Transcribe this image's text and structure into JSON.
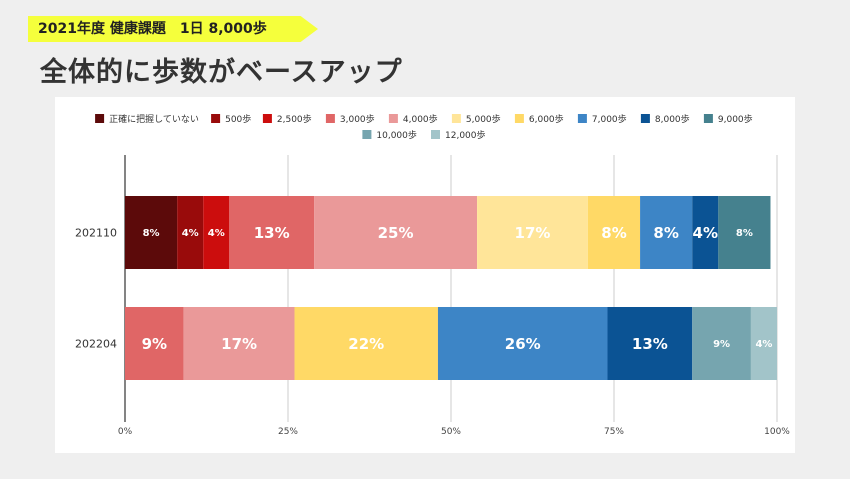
{
  "header": {
    "tag": "2021年度 健康課題　1日 8,000歩",
    "title": "全体的に歩数がベースアップ"
  },
  "chart_data": {
    "type": "bar",
    "orientation": "horizontal",
    "stacked": true,
    "normalized": true,
    "legend_position": "top",
    "grid": true,
    "categories": [
      "202110",
      "202204"
    ],
    "x_ticks": [
      "0%",
      "25%",
      "50%",
      "75%",
      "100%"
    ],
    "xlim": [
      0,
      100
    ],
    "series": [
      {
        "name": "正確に把握していない",
        "color": "#5c0a0a",
        "values": [
          8,
          0
        ],
        "labels": [
          "8%",
          ""
        ],
        "label_size": "small"
      },
      {
        "name": "500歩",
        "color": "#990b0b",
        "values": [
          4,
          0
        ],
        "labels": [
          "4%",
          ""
        ],
        "label_size": "small"
      },
      {
        "name": "2,500歩",
        "color": "#cc0d0d",
        "values": [
          4,
          0
        ],
        "labels": [
          "4%",
          ""
        ],
        "label_size": "small"
      },
      {
        "name": "3,000歩",
        "color": "#e06666",
        "values": [
          13,
          9
        ],
        "labels": [
          "13%",
          "9%"
        ],
        "label_size": "large"
      },
      {
        "name": "4,000歩",
        "color": "#ea9999",
        "values": [
          25,
          17
        ],
        "labels": [
          "25%",
          "17%"
        ],
        "label_size": "large"
      },
      {
        "name": "5,000歩",
        "color": "#ffe599",
        "values": [
          17,
          0
        ],
        "labels": [
          "17%",
          ""
        ],
        "label_size": "large"
      },
      {
        "name": "6,000歩",
        "color": "#ffd966",
        "values": [
          8,
          22
        ],
        "labels": [
          "8%",
          "22%"
        ],
        "label_size": "large"
      },
      {
        "name": "7,000歩",
        "color": "#3d85c6",
        "values": [
          8,
          26
        ],
        "labels": [
          "8%",
          "26%"
        ],
        "label_size": "large"
      },
      {
        "name": "8,000歩",
        "color": "#0b5394",
        "values": [
          4,
          13
        ],
        "labels": [
          "4%",
          "13%"
        ],
        "label_size": "large"
      },
      {
        "name": "9,000歩",
        "color": "#45818e",
        "values": [
          8,
          0
        ],
        "labels": [
          "8%",
          ""
        ],
        "label_size": "small"
      },
      {
        "name": "10,000歩",
        "color": "#76a5af",
        "values": [
          0,
          9
        ],
        "labels": [
          "",
          "9%"
        ],
        "label_size": "small"
      },
      {
        "name": "12,000歩",
        "color": "#a2c4c9",
        "values": [
          0,
          4
        ],
        "labels": [
          "",
          "4%"
        ],
        "label_size": "small"
      }
    ]
  }
}
